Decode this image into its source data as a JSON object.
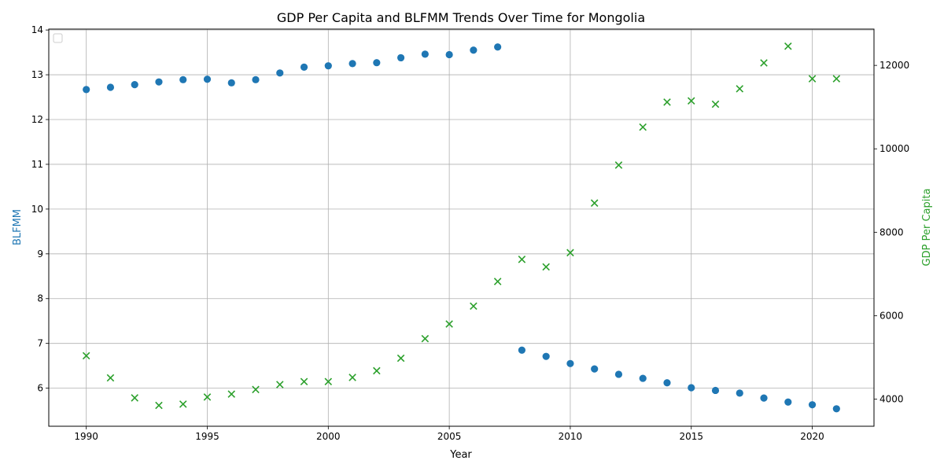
{
  "chart_data": {
    "type": "scatter",
    "title": "GDP Per Capita and BLFMM Trends Over Time for Mongolia",
    "xlabel": "Year",
    "ylabel_left": "BLFMM",
    "ylabel_right": "GDP Per Capita",
    "xlim": [
      1988.45,
      2022.55
    ],
    "ylim_left": [
      5.15,
      14.02
    ],
    "ylim_right": [
      3350,
      12870
    ],
    "x_ticks": [
      1990,
      1995,
      2000,
      2005,
      2010,
      2015,
      2020
    ],
    "y_ticks_left": [
      6,
      7,
      8,
      9,
      10,
      11,
      12,
      13,
      14
    ],
    "y_ticks_right": [
      4000,
      6000,
      8000,
      10000,
      12000
    ],
    "grid": true,
    "legend": "upper-left (empty)",
    "colors": {
      "left": "#1f77b4",
      "right": "#2ca02c"
    },
    "x": [
      1990,
      1991,
      1992,
      1993,
      1994,
      1995,
      1996,
      1997,
      1998,
      1999,
      2000,
      2001,
      2002,
      2003,
      2004,
      2005,
      2006,
      2007,
      2008,
      2009,
      2010,
      2011,
      2012,
      2013,
      2014,
      2015,
      2016,
      2017,
      2018,
      2019,
      2020,
      2021
    ],
    "series": [
      {
        "name": "BLFMM",
        "axis": "left",
        "marker": "circle",
        "values": [
          12.67,
          12.72,
          12.78,
          12.84,
          12.89,
          12.9,
          12.82,
          12.89,
          13.04,
          13.17,
          13.2,
          13.25,
          13.27,
          13.38,
          13.46,
          13.45,
          13.55,
          13.62,
          6.85,
          6.71,
          6.55,
          6.43,
          6.31,
          6.22,
          6.12,
          6.01,
          5.95,
          5.89,
          5.78,
          5.69,
          5.63,
          5.54
        ]
      },
      {
        "name": "GDP Per Capita",
        "axis": "right",
        "marker": "x",
        "values": [
          5040,
          4510,
          4030,
          3850,
          3880,
          4050,
          4120,
          4230,
          4350,
          4420,
          4420,
          4520,
          4680,
          4980,
          5450,
          5800,
          6230,
          6820,
          7350,
          7170,
          7510,
          8700,
          9610,
          10520,
          11120,
          11150,
          11070,
          11440,
          12060,
          12460,
          11680,
          11680
        ]
      }
    ]
  }
}
